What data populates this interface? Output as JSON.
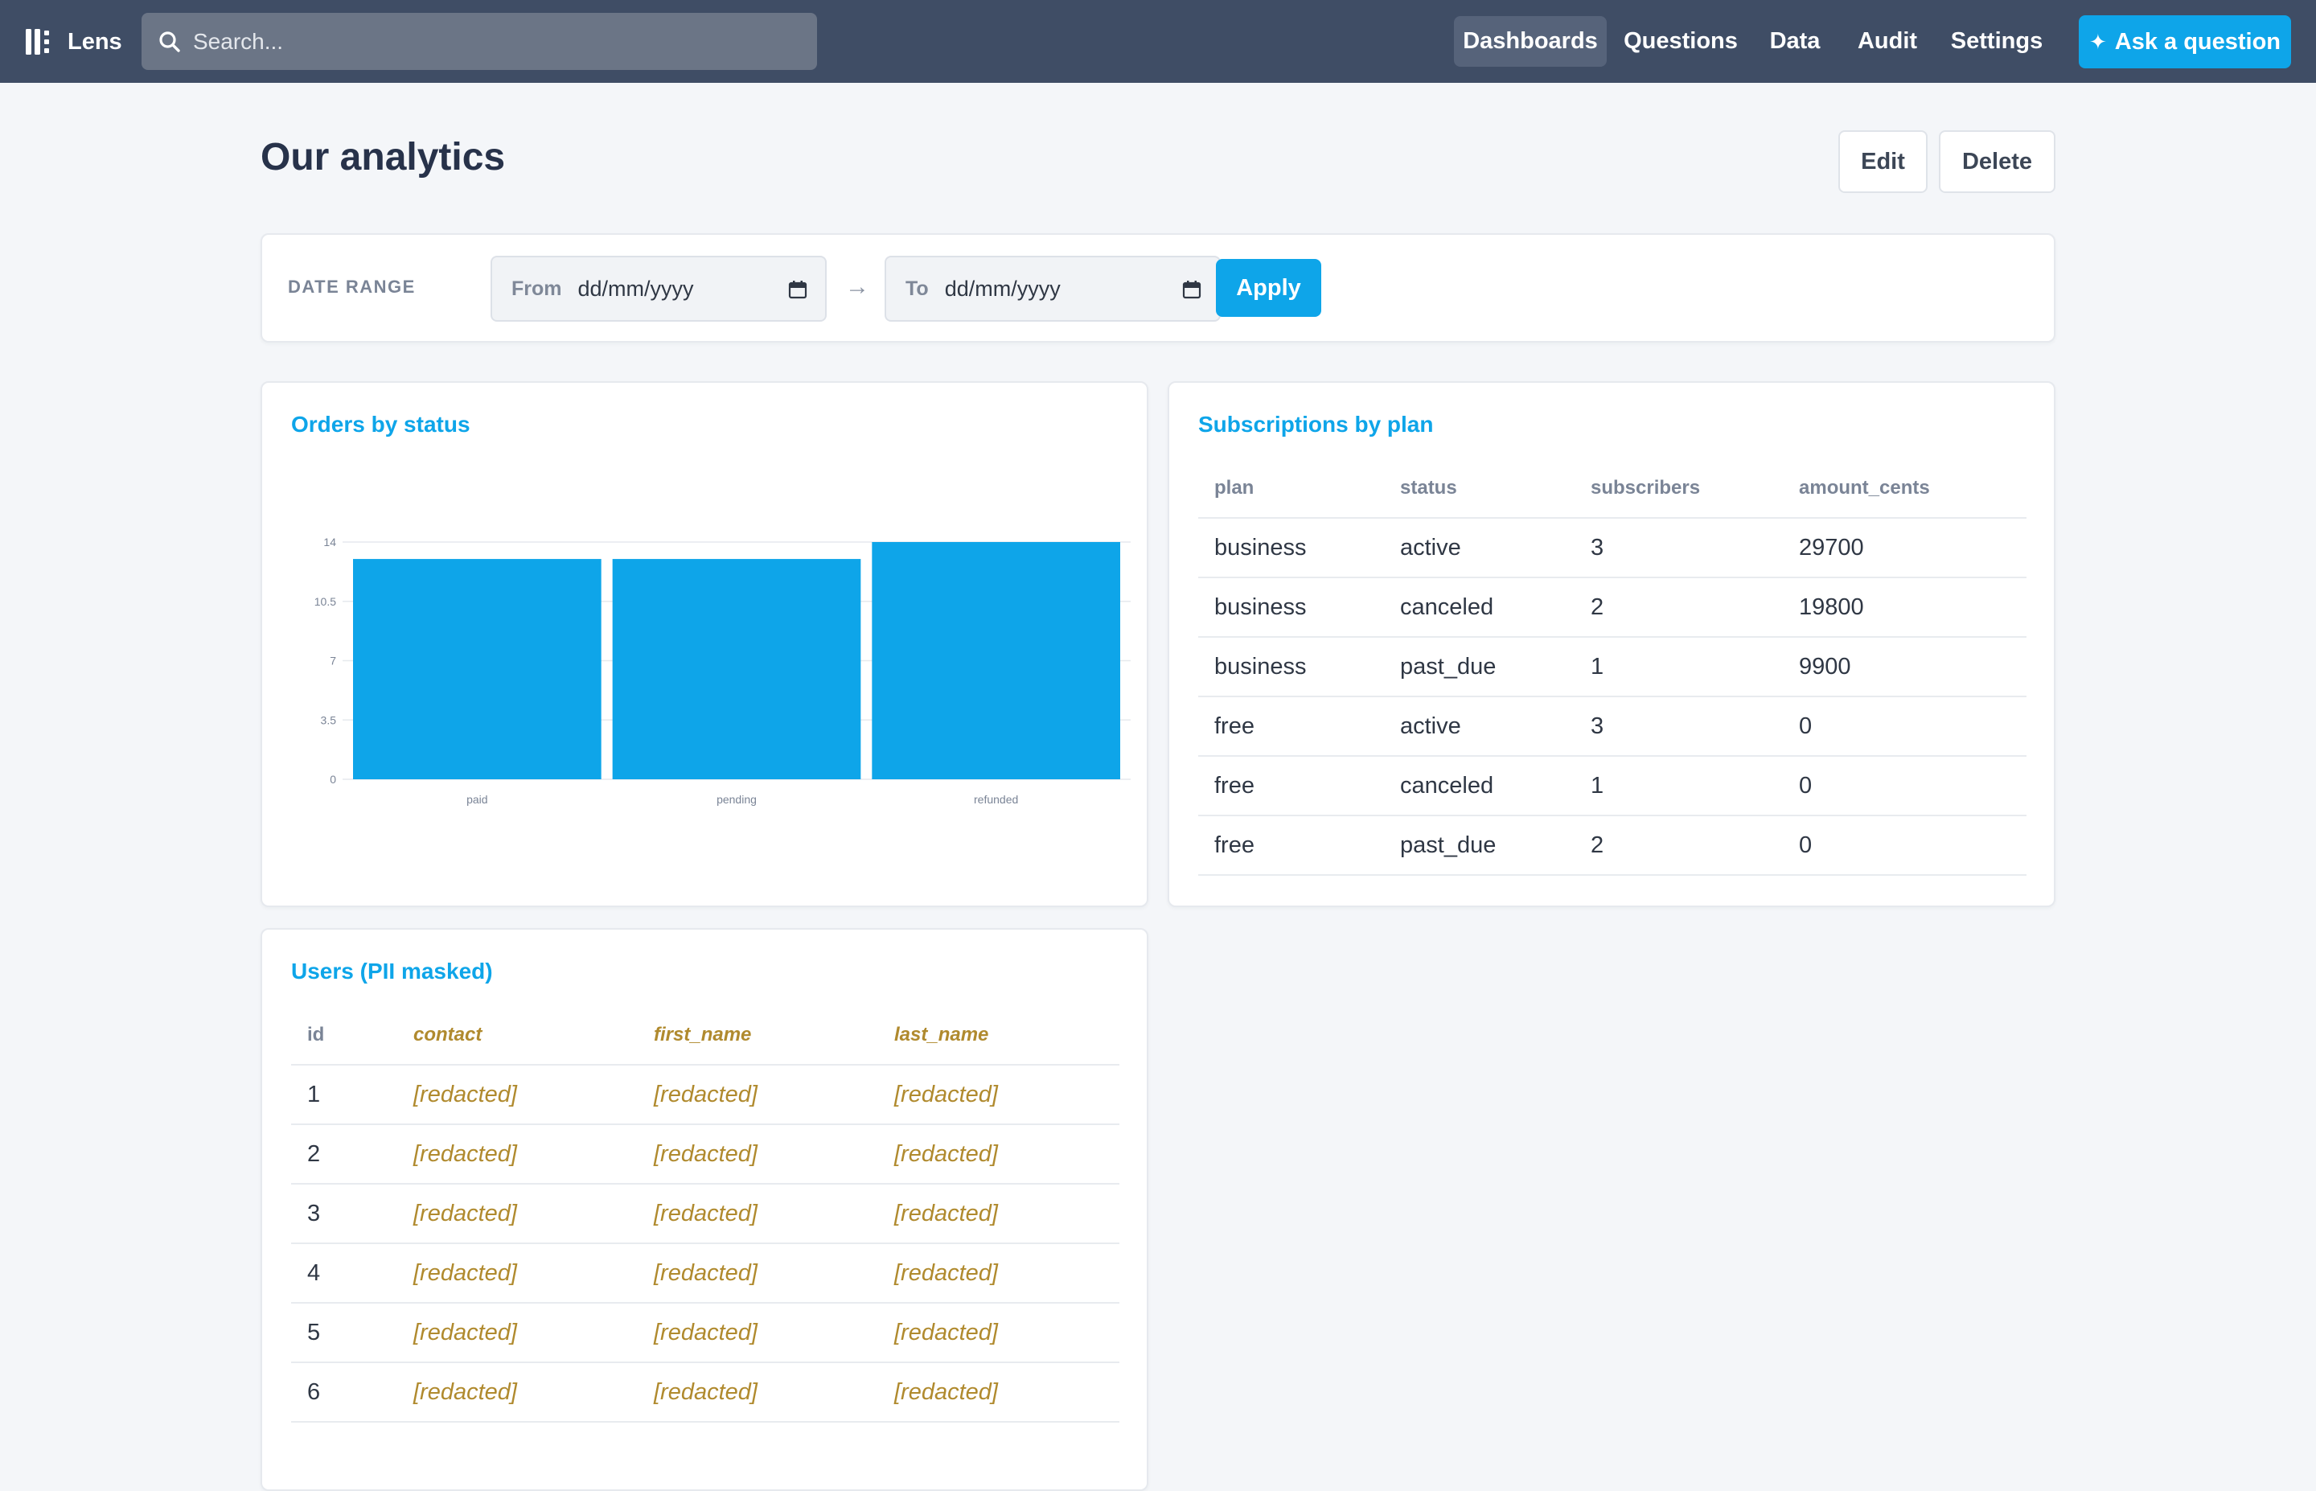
{
  "app": {
    "name": "Lens",
    "search_placeholder": "Search...",
    "nav": [
      "Dashboards",
      "Questions",
      "Data",
      "Audit",
      "Settings"
    ],
    "nav_active": "Dashboards",
    "ask_label": "Ask a question"
  },
  "page": {
    "title": "Our analytics",
    "edit_label": "Edit",
    "delete_label": "Delete"
  },
  "filter": {
    "label": "DATE RANGE",
    "from_label": "From",
    "from_value": "dd/mm/yyyy",
    "to_label": "To",
    "to_value": "dd/mm/yyyy",
    "arrow": "→",
    "apply_label": "Apply"
  },
  "orders_card": {
    "title": "Orders by status"
  },
  "chart_data": {
    "type": "bar",
    "categories": [
      "paid",
      "pending",
      "refunded"
    ],
    "values": [
      13,
      13,
      14
    ],
    "ylim": [
      0,
      14
    ],
    "yticks": [
      "0",
      "3.5",
      "7",
      "10.5",
      "14"
    ],
    "color": "#0ea5e9",
    "grid": true
  },
  "subscriptions_card": {
    "title": "Subscriptions by plan",
    "columns": [
      "plan",
      "status",
      "subscribers",
      "amount_cents"
    ],
    "rows": [
      [
        "business",
        "active",
        "3",
        "29700"
      ],
      [
        "business",
        "canceled",
        "2",
        "19800"
      ],
      [
        "business",
        "past_due",
        "1",
        "9900"
      ],
      [
        "free",
        "active",
        "3",
        "0"
      ],
      [
        "free",
        "canceled",
        "1",
        "0"
      ],
      [
        "free",
        "past_due",
        "2",
        "0"
      ]
    ]
  },
  "users_card": {
    "title": "Users (PII masked)",
    "columns": [
      "id",
      "contact",
      "first_name",
      "last_name"
    ],
    "masked_columns": [
      "contact",
      "first_name",
      "last_name"
    ],
    "rows": [
      [
        "1",
        "[redacted]",
        "[redacted]",
        "[redacted]"
      ],
      [
        "2",
        "[redacted]",
        "[redacted]",
        "[redacted]"
      ],
      [
        "3",
        "[redacted]",
        "[redacted]",
        "[redacted]"
      ],
      [
        "4",
        "[redacted]",
        "[redacted]",
        "[redacted]"
      ],
      [
        "5",
        "[redacted]",
        "[redacted]",
        "[redacted]"
      ],
      [
        "6",
        "[redacted]",
        "[redacted]",
        "[redacted]"
      ]
    ]
  },
  "colors": {
    "topbar": "#3f4d65",
    "accent": "#0ea5e9",
    "masked": "#b08a2e"
  }
}
